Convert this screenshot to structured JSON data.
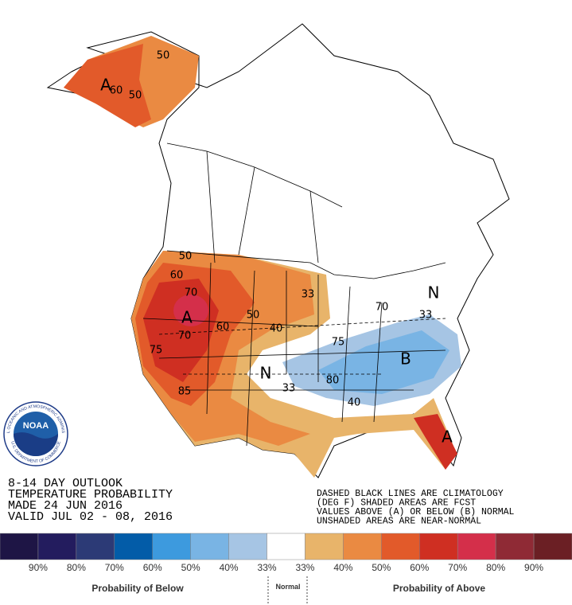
{
  "logo": {
    "name": "NOAA",
    "ring_top": "NATIONAL OCEANIC AND ATMOSPHERIC ADMINISTRATION",
    "ring_bottom": "U.S. DEPARTMENT OF COMMERCE"
  },
  "header": {
    "lines": [
      "8-14 DAY OUTLOOK",
      "TEMPERATURE PROBABILITY",
      "MADE  24 JUN 2016",
      "VALID  JUL 02 - 08, 2016"
    ]
  },
  "notes": [
    "DASHED BLACK LINES ARE CLIMATOLOGY",
    "(DEG F) SHADED AREAS ARE FCST",
    "VALUES ABOVE (A) OR BELOW (B) NORMAL",
    "UNSHADED AREAS ARE NEAR-NORMAL"
  ],
  "map": {
    "labels": [
      "A",
      "60",
      "50",
      "50",
      "50",
      "60",
      "70",
      "A",
      "70",
      "75",
      "60",
      "50",
      "40",
      "33",
      "N",
      "33",
      "B",
      "33",
      "80",
      "40",
      "75",
      "N",
      "70",
      "A",
      "85"
    ]
  },
  "legend": {
    "colors": [
      "#1e1545",
      "#231c5e",
      "#2c3a76",
      "#035ca8",
      "#3d9ade",
      "#79b4e4",
      "#a6c5e4",
      "#ffffff",
      "#e8b46a",
      "#ea8a42",
      "#e25a2a",
      "#cf2f22",
      "#d42f4a",
      "#8f2a35",
      "#6b1f24"
    ],
    "labels": [
      "90%",
      "80%",
      "70%",
      "60%",
      "50%",
      "40%",
      "33%",
      "33%",
      "40%",
      "50%",
      "60%",
      "70%",
      "80%",
      "90%"
    ],
    "below_title": "Probability of Below",
    "normal_title": "Normal",
    "above_title": "Probability of Above"
  }
}
